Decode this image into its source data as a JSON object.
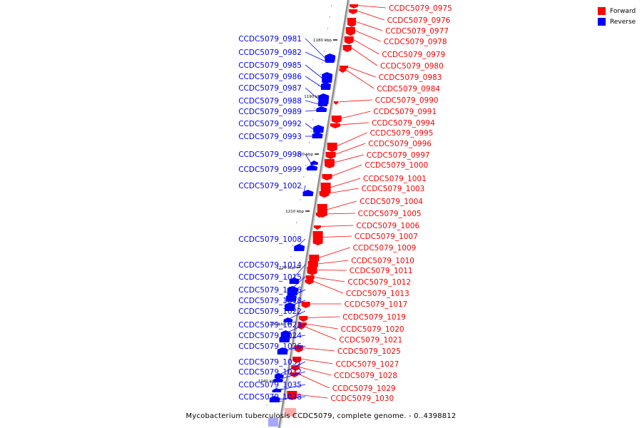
{
  "legend": [
    {
      "label": "Forward",
      "color": "#ff0000"
    },
    {
      "label": "Reverse",
      "color": "#0000ff"
    }
  ],
  "caption": "Mycobacterium tuberculosis CCDC5079, complete genome. - 0..4398812",
  "colors": {
    "forward": "#ff0000",
    "reverse": "#0000ff",
    "axis": "#888888"
  },
  "scale_marks": [
    "1180 kbp",
    "1190 kbp",
    "1200 kbp",
    "1210 kbp",
    "1220 kbp",
    "1230 kbp",
    "1240 kbp"
  ],
  "reverse_genes": [
    "CCDC5079_0981",
    "CCDC5079_0982",
    "CCDC5079_0985",
    "CCDC5079_0986",
    "CCDC5079_0987",
    "CCDC5079_0988",
    "CCDC5079_0989",
    "CCDC5079_0992",
    "CCDC5079_0993",
    "CCDC5079_0998",
    "CCDC5079_0999",
    "CCDC5079_1002",
    "CCDC5079_1008",
    "CCDC5079_1014",
    "CCDC5079_1015",
    "CCDC5079_1016",
    "CCDC5079_1018",
    "CCDC5079_1022",
    "CCDC5079_1023",
    "CCDC5079_1024",
    "CCDC5079_1026",
    "CCDC5079_1031",
    "CCDC5079_1032",
    "CCDC5079_1035",
    "CCDC5079_1038"
  ],
  "forward_genes": [
    "CCDC5079_0975",
    "CCDC5079_0976",
    "CCDC5079_0977",
    "CCDC5079_0978",
    "CCDC5079_0979",
    "CCDC5079_0980",
    "CCDC5079_0983",
    "CCDC5079_0984",
    "CCDC5079_0990",
    "CCDC5079_0991",
    "CCDC5079_0994",
    "CCDC5079_0995",
    "CCDC5079_0996",
    "CCDC5079_0997",
    "CCDC5079_1000",
    "CCDC5079_1001",
    "CCDC5079_1003",
    "CCDC5079_1004",
    "CCDC5079_1005",
    "CCDC5079_1006",
    "CCDC5079_1007",
    "CCDC5079_1009",
    "CCDC5079_1010",
    "CCDC5079_1011",
    "CCDC5079_1012",
    "CCDC5079_1013",
    "CCDC5079_1017",
    "CCDC5079_1019",
    "CCDC5079_1020",
    "CCDC5079_1021",
    "CCDC5079_1025",
    "CCDC5079_1027",
    "CCDC5079_1028",
    "CCDC5079_1029",
    "CCDC5079_1030"
  ]
}
